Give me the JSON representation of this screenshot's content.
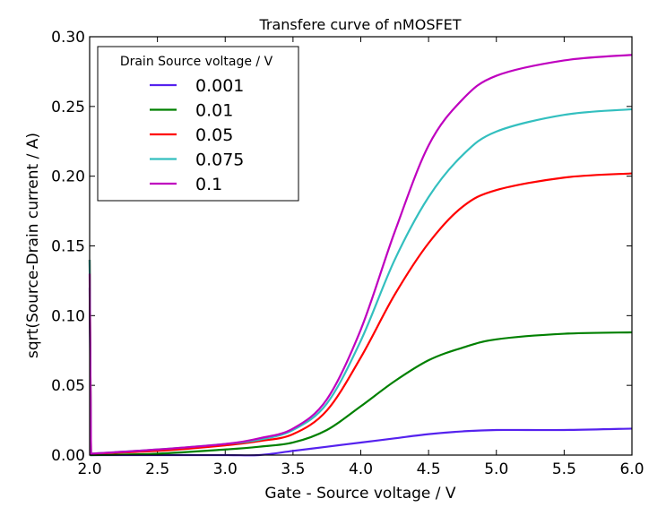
{
  "chart_data": {
    "type": "line",
    "title": "Transfere curve of nMOSFET",
    "xlabel": "Gate - Source voltage / V",
    "ylabel": "sqrt(Source-Drain current / A)",
    "xlim": [
      2.0,
      6.0
    ],
    "ylim": [
      0.0,
      0.3
    ],
    "xticks": [
      "2.0",
      "2.5",
      "3.0",
      "3.5",
      "4.0",
      "4.5",
      "5.0",
      "5.5",
      "6.0"
    ],
    "yticks": [
      "0.00",
      "0.05",
      "0.10",
      "0.15",
      "0.20",
      "0.25",
      "0.30"
    ],
    "grid": false,
    "legend": {
      "title": "Drain Source voltage / V",
      "placement": "top-left"
    },
    "series": [
      {
        "name": "0.001",
        "color": "#5522ee",
        "x": [
          2.0,
          2.01,
          2.5,
          3.0,
          3.25,
          3.5,
          3.75,
          4.0,
          4.25,
          4.5,
          4.75,
          5.0,
          5.5,
          6.0
        ],
        "y": [
          0.12,
          0.0,
          0.0,
          0.0,
          0.0,
          0.003,
          0.006,
          0.009,
          0.012,
          0.015,
          0.017,
          0.018,
          0.018,
          0.019
        ]
      },
      {
        "name": "0.01",
        "color": "#008000",
        "x": [
          2.0,
          2.01,
          2.5,
          3.0,
          3.25,
          3.5,
          3.75,
          4.0,
          4.25,
          4.5,
          4.75,
          5.0,
          5.5,
          6.0
        ],
        "y": [
          0.14,
          0.0,
          0.001,
          0.004,
          0.006,
          0.009,
          0.018,
          0.035,
          0.053,
          0.068,
          0.077,
          0.083,
          0.087,
          0.088
        ]
      },
      {
        "name": "0.05",
        "color": "#ff0000",
        "x": [
          2.0,
          2.01,
          2.5,
          3.0,
          3.25,
          3.5,
          3.75,
          4.0,
          4.25,
          4.5,
          4.75,
          5.0,
          5.5,
          6.0
        ],
        "y": [
          0.14,
          0.001,
          0.003,
          0.007,
          0.01,
          0.015,
          0.032,
          0.07,
          0.115,
          0.152,
          0.178,
          0.19,
          0.199,
          0.202
        ]
      },
      {
        "name": "0.075",
        "color": "#33bfbf",
        "x": [
          2.0,
          2.01,
          2.5,
          3.0,
          3.25,
          3.5,
          3.75,
          4.0,
          4.25,
          4.5,
          4.75,
          5.0,
          5.5,
          6.0
        ],
        "y": [
          0.14,
          0.001,
          0.004,
          0.008,
          0.011,
          0.018,
          0.037,
          0.082,
          0.14,
          0.185,
          0.215,
          0.232,
          0.244,
          0.248
        ]
      },
      {
        "name": "0.1",
        "color": "#bf00bf",
        "x": [
          2.0,
          2.01,
          2.5,
          3.0,
          3.25,
          3.5,
          3.75,
          4.0,
          4.25,
          4.5,
          4.75,
          5.0,
          5.5,
          6.0
        ],
        "y": [
          0.13,
          0.001,
          0.004,
          0.008,
          0.012,
          0.019,
          0.04,
          0.09,
          0.16,
          0.222,
          0.255,
          0.272,
          0.283,
          0.287
        ]
      }
    ]
  }
}
